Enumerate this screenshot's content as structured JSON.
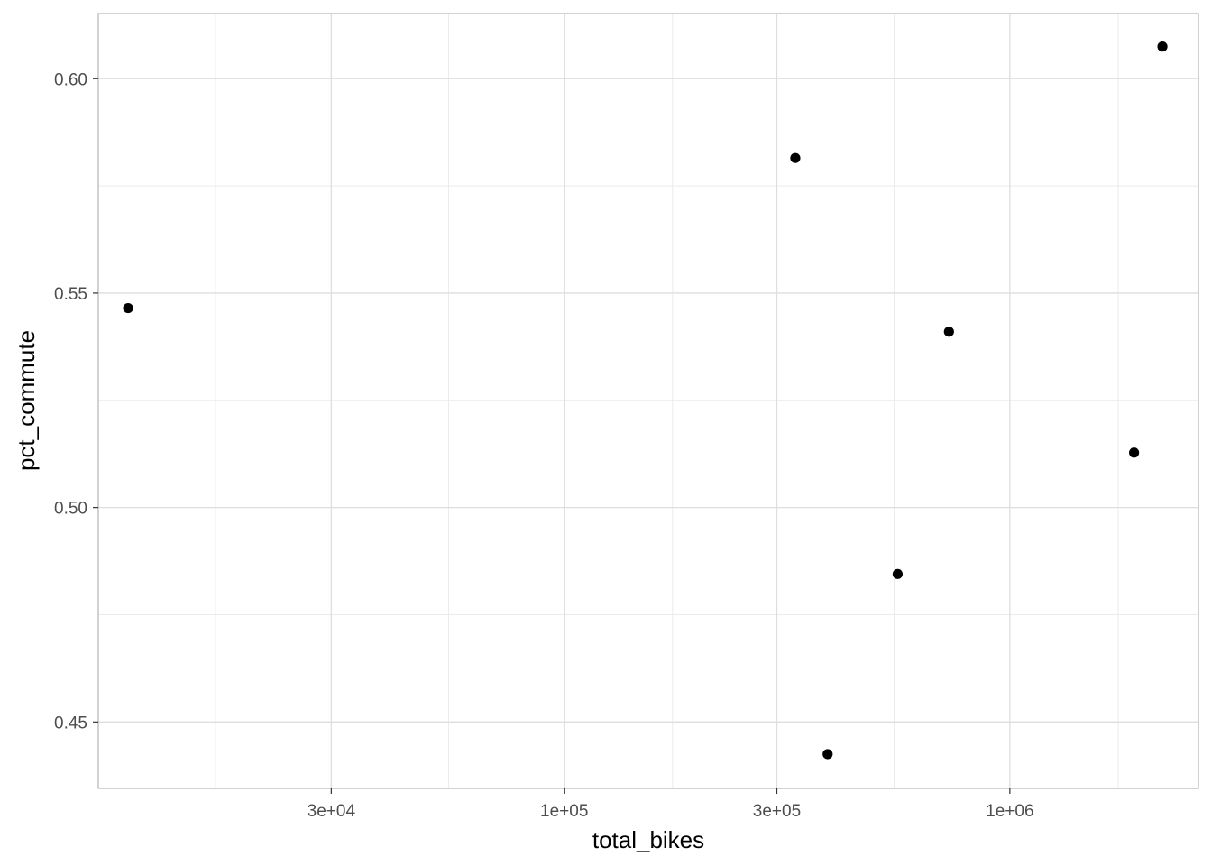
{
  "chart_data": {
    "type": "scatter",
    "title": "",
    "xlabel": "total_bikes",
    "ylabel": "pct_commute",
    "x_scale": "log10",
    "xlim": [
      9000,
      2650000
    ],
    "ylim": [
      0.4345,
      0.6152
    ],
    "x_ticks": [
      {
        "value": 30000,
        "label": "3e+04"
      },
      {
        "value": 100000,
        "label": "1e+05"
      },
      {
        "value": 300000,
        "label": "3e+05"
      },
      {
        "value": 1000000,
        "label": "1e+06"
      }
    ],
    "x_minor_ticks": [
      16500,
      55000,
      175000,
      550000,
      1750000
    ],
    "y_ticks": [
      {
        "value": 0.45,
        "label": "0.45"
      },
      {
        "value": 0.5,
        "label": "0.50"
      },
      {
        "value": 0.55,
        "label": "0.55"
      },
      {
        "value": 0.6,
        "label": "0.60"
      }
    ],
    "y_minor_ticks": [
      0.475,
      0.525,
      0.575
    ],
    "grid": true,
    "point_color": "#000000",
    "series": [
      {
        "points": [
          {
            "x": 10500,
            "y": 0.5465
          },
          {
            "x": 330000,
            "y": 0.5815
          },
          {
            "x": 390000,
            "y": 0.4425
          },
          {
            "x": 560000,
            "y": 0.4845
          },
          {
            "x": 730000,
            "y": 0.541
          },
          {
            "x": 1900000,
            "y": 0.5128
          },
          {
            "x": 2200000,
            "y": 0.6075
          }
        ]
      }
    ]
  }
}
